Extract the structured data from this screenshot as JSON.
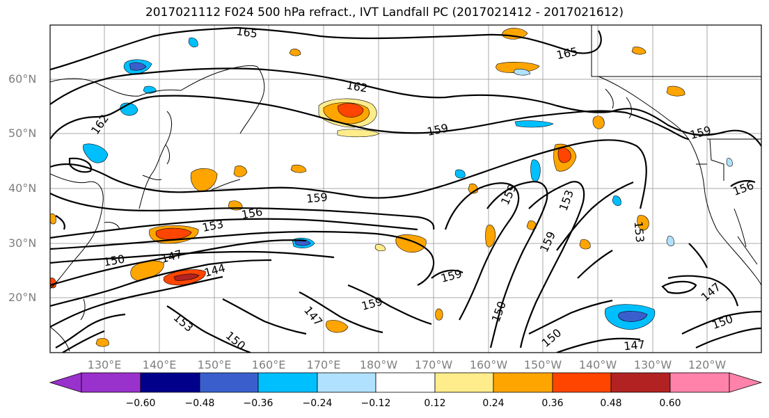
{
  "title": "2017021112 F024 500 hPa refract., IVT Landfall PC (2017021412 - 2017021612)",
  "lat_labels": [
    "60°N",
    "50°N",
    "40°N",
    "30°N",
    "20°N"
  ],
  "lon_labels": [
    "130°E",
    "140°E",
    "150°E",
    "160°E",
    "170°E",
    "180°W",
    "170°W",
    "160°W",
    "150°W",
    "140°W",
    "130°W",
    "120°W"
  ],
  "contour_labels": [
    "165",
    "165",
    "162",
    "162",
    "159",
    "159",
    "159",
    "159",
    "159",
    "159",
    "159",
    "156",
    "156",
    "153",
    "153",
    "153",
    "153",
    "150",
    "150",
    "150",
    "150",
    "150",
    "147",
    "147",
    "147",
    "147",
    "144"
  ],
  "colorbar": {
    "tick_labels": [
      "−0.60",
      "−0.48",
      "−0.36",
      "−0.24",
      "−0.12",
      "0.12",
      "0.24",
      "0.36",
      "0.48",
      "0.60"
    ],
    "colors": [
      "#9932cc",
      "#00008b",
      "#3a5fcd",
      "#00bfff",
      "#b0e2ff",
      "#ffffff",
      "#ffec8b",
      "#ffa500",
      "#ff4500",
      "#b22222",
      "#ff82ab"
    ]
  }
}
